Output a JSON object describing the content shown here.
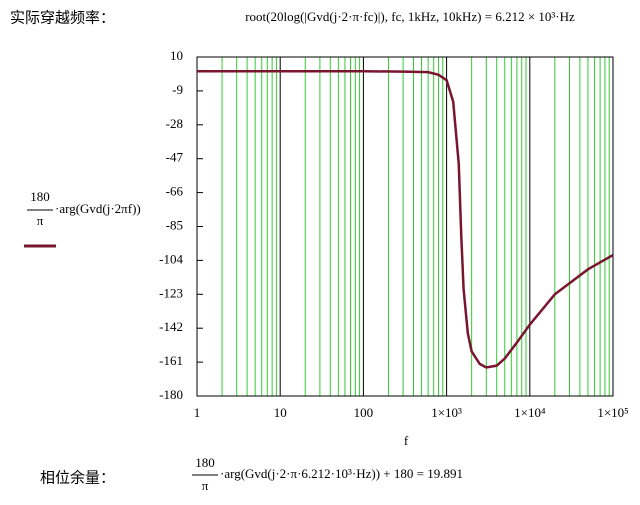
{
  "header": {
    "label": "实际穿越频率：",
    "formula": "root(20log(|Gvd(j·2·π·fc)|), fc, 1kHz, 10kHz) = 6.212 × 10³·Hz"
  },
  "chart_data": {
    "type": "line",
    "log_x": true,
    "ylabel": {
      "numerator": "180",
      "denominator": "π",
      "expression": "·arg(Gvd(j·2πf))"
    },
    "xlabel": "f",
    "x": [
      1,
      10,
      100,
      300,
      600,
      800,
      1000,
      1200,
      1400,
      1500,
      1600,
      1800,
      2000,
      2500,
      3000,
      4000,
      5000,
      7000,
      10000,
      20000,
      50000,
      100000
    ],
    "series": [
      {
        "color": "#7a1530",
        "values": [
          2,
          2,
          2,
          1.8,
          1.5,
          0,
          -3,
          -15,
          -50,
          -90,
          -120,
          -145,
          -155,
          -162,
          -164,
          -163,
          -159,
          -150,
          -140,
          -123,
          -109,
          -101
        ]
      }
    ],
    "xlim": [
      1,
      100000
    ],
    "ylim": [
      -180,
      10
    ],
    "xticks": [
      1,
      10,
      100,
      {
        "value": 1000,
        "label": "1×10³"
      },
      {
        "value": 10000,
        "label": "1×10⁴"
      },
      {
        "value": 100000,
        "label": "1×10⁵"
      }
    ],
    "yticks": [
      10,
      -9,
      -28,
      -47,
      -66,
      -85,
      -104,
      -123,
      -142,
      -161,
      -180
    ],
    "grid": true,
    "grid_color": "#33cc33"
  },
  "footer": {
    "label": "相位余量：",
    "numerator": "180",
    "denominator": "π",
    "expression": "·arg(Gvd(j·2·π·6.212·10³·Hz)) + 180 = 19.891"
  }
}
